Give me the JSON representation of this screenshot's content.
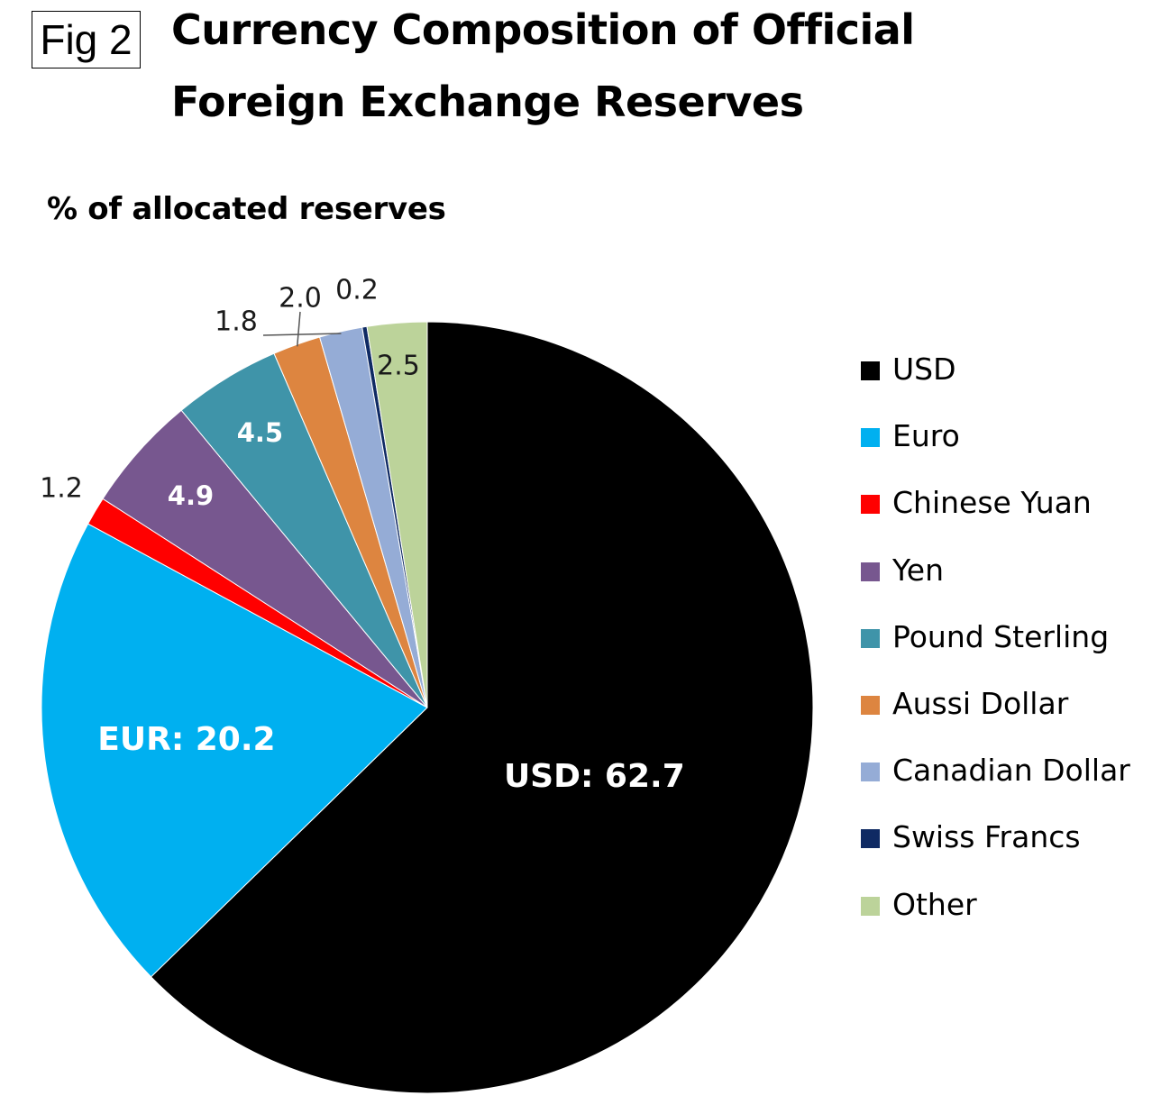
{
  "figure_label": "Fig 2",
  "title_lines": [
    "Currency Composition of Official",
    "Foreign Exchange Reserves"
  ],
  "chart_data": {
    "type": "pie",
    "title": "Currency Composition of Official Foreign Exchange Reserves",
    "unit_label": "% of allocated reserves",
    "legend_position": "right",
    "slices": [
      {
        "name": "USD",
        "value": 62.7,
        "label": "USD: 62.7",
        "color": "#000000",
        "label_color": "#ffffff"
      },
      {
        "name": "Euro",
        "value": 20.2,
        "label": "EUR: 20.2",
        "color": "#00b0f0",
        "label_color": "#ffffff"
      },
      {
        "name": "Chinese Yuan",
        "value": 1.2,
        "label": "1.2",
        "color": "#ff0000",
        "label_color": "#1a1a1a"
      },
      {
        "name": "Yen",
        "value": 4.9,
        "label": "4.9",
        "color": "#77578f",
        "label_color": "#ffffff"
      },
      {
        "name": "Pound Sterling",
        "value": 4.5,
        "label": "4.5",
        "color": "#3f94a9",
        "label_color": "#ffffff"
      },
      {
        "name": "Aussi Dollar",
        "value": 2.0,
        "label": "2.0",
        "color": "#dd8540",
        "label_color": "#1a1a1a"
      },
      {
        "name": "Canadian Dollar",
        "value": 1.8,
        "label": "1.8",
        "color": "#95acd6",
        "label_color": "#1a1a1a"
      },
      {
        "name": "Swiss Francs",
        "value": 0.2,
        "label": "0.2",
        "color": "#0f2a63",
        "label_color": "#1a1a1a"
      },
      {
        "name": "Other",
        "value": 2.5,
        "label": "2.5",
        "color": "#bcd39a",
        "label_color": "#1a1a1a"
      }
    ]
  }
}
